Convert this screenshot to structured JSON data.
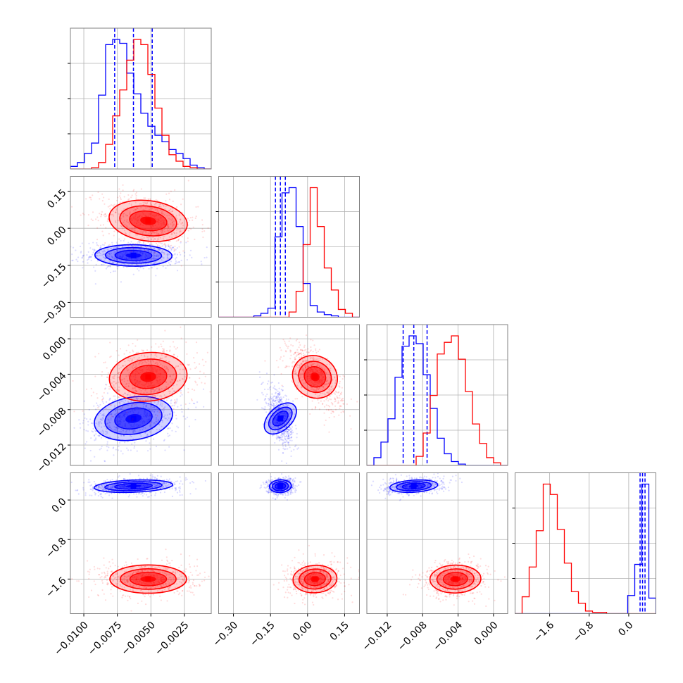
{
  "chart_data": {
    "type": "corner",
    "title": "",
    "colors": {
      "series_a": "#0000ff",
      "series_b": "#ff0000",
      "grid": "#b0b0b0",
      "frame": "#808080"
    },
    "grid": true,
    "parameters": [
      {
        "range": [
          -0.011,
          -0.0005
        ],
        "ticks": [
          -0.01,
          -0.0075,
          -0.005,
          -0.0025
        ],
        "tick_labels": [
          "−0.0100",
          "−0.0075",
          "−0.0050",
          "−0.0025"
        ]
      },
      {
        "range": [
          -0.36,
          0.21
        ],
        "ticks": [
          -0.3,
          -0.15,
          0.0,
          0.15
        ],
        "tick_labels": [
          "−0.30",
          "−0.15",
          "0.00",
          "0.15"
        ]
      },
      {
        "range": [
          -0.0143,
          0.0016
        ],
        "ticks": [
          -0.012,
          -0.008,
          -0.004,
          0.0
        ],
        "tick_labels": [
          "−0.012",
          "−0.008",
          "−0.004",
          "0.000"
        ]
      },
      {
        "range": [
          -2.3,
          0.55
        ],
        "ticks": [
          -1.6,
          -0.8,
          0.0
        ],
        "tick_labels": [
          "−1.6",
          "−0.8",
          "0.0"
        ]
      }
    ],
    "series": [
      {
        "name": "",
        "color": "#0000ff",
        "mean": [
          -0.0063,
          -0.11,
          -0.009,
          0.28
        ],
        "sd": [
          0.0013,
          0.02,
          0.0012,
          0.06
        ],
        "quantiles": [
          [
            -0.0077,
            -0.0063,
            -0.0049
          ],
          [
            -0.13,
            -0.11,
            -0.09
          ],
          [
            -0.0102,
            -0.009,
            -0.0075
          ],
          [
            0.23,
            0.28,
            0.33
          ]
        ],
        "histograms": [
          [
            0.02,
            0.05,
            0.12,
            0.2,
            0.57,
            0.96,
            1.0,
            0.97,
            0.74,
            0.58,
            0.43,
            0.33,
            0.26,
            0.21,
            0.15,
            0.12,
            0.08,
            0.03,
            0.01,
            0.0
          ],
          [
            0.0,
            0.0,
            0.0,
            0.0,
            0.0,
            0.01,
            0.03,
            0.07,
            0.62,
            0.96,
            1.0,
            0.7,
            0.26,
            0.09,
            0.04,
            0.02,
            0.01,
            0.0,
            0.0,
            0.0
          ],
          [
            0.0,
            0.06,
            0.18,
            0.36,
            0.68,
            0.92,
            1.0,
            0.94,
            0.7,
            0.44,
            0.21,
            0.09,
            0.03,
            0.01,
            0.0,
            0.0,
            0.0,
            0.0,
            0.0,
            0.0
          ],
          [
            0.0,
            0.0,
            0.0,
            0.0,
            0.0,
            0.0,
            0.0,
            0.0,
            0.0,
            0.0,
            0.0,
            0.0,
            0.0,
            0.0,
            0.0,
            0.0,
            0.14,
            0.38,
            1.0,
            0.12
          ]
        ]
      },
      {
        "name": "",
        "color": "#ff0000",
        "mean": [
          -0.0052,
          0.03,
          -0.0043,
          -1.6
        ],
        "sd": [
          0.0013,
          0.04,
          0.0013,
          0.13
        ],
        "quantiles": [],
        "histograms": [
          [
            0.0,
            0.0,
            0.0,
            0.01,
            0.05,
            0.19,
            0.41,
            0.61,
            0.84,
            1.0,
            0.96,
            0.73,
            0.47,
            0.26,
            0.11,
            0.06,
            0.02,
            0.01,
            0.0,
            0.0
          ],
          [
            0.0,
            0.0,
            0.0,
            0.0,
            0.0,
            0.0,
            0.0,
            0.0,
            0.0,
            0.0,
            0.04,
            0.2,
            0.56,
            1.0,
            0.7,
            0.38,
            0.21,
            0.06,
            0.03,
            0.0
          ],
          [
            0.0,
            0.0,
            0.0,
            0.0,
            0.0,
            0.0,
            0.0,
            0.07,
            0.25,
            0.54,
            0.86,
            0.95,
            1.0,
            0.82,
            0.57,
            0.32,
            0.17,
            0.06,
            0.02,
            0.0
          ],
          [
            0.0,
            0.13,
            0.36,
            0.64,
            1.0,
            0.92,
            0.65,
            0.39,
            0.17,
            0.08,
            0.02,
            0.01,
            0.01,
            0.0,
            0.0,
            0.0,
            0.0,
            0.0,
            0.0,
            0.0
          ]
        ]
      }
    ]
  }
}
